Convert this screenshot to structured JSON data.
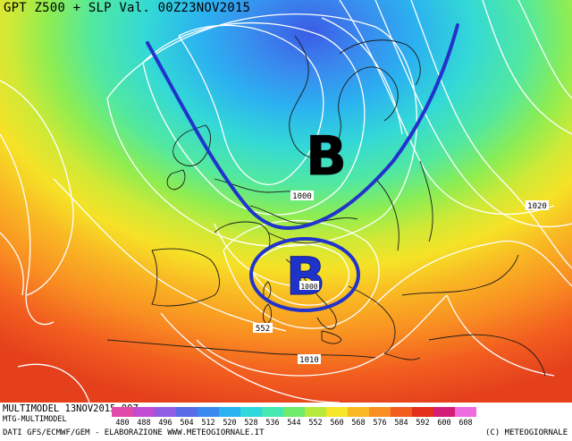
{
  "title": "GPT Z500 + SLP Val. 00Z23NOV2015",
  "footer": {
    "model_run": "MULTIMODEL 13NOV2015 00Z",
    "model_name": "MTG-MULTIMODEL",
    "credits": "DATI GFS/ECMWF/GEM - ELABORAZIONE WWW.METEOGIORNALE.IT",
    "copyright": "(C) METEOGIORNALE"
  },
  "legend": [
    {
      "label": "480",
      "color": "#e14aa8"
    },
    {
      "label": "488",
      "color": "#c24bd4"
    },
    {
      "label": "496",
      "color": "#8f5de2"
    },
    {
      "label": "504",
      "color": "#5a6be8"
    },
    {
      "label": "512",
      "color": "#3a89ee"
    },
    {
      "label": "520",
      "color": "#2bb2f0"
    },
    {
      "label": "528",
      "color": "#2fd8dd"
    },
    {
      "label": "536",
      "color": "#44e8b0"
    },
    {
      "label": "544",
      "color": "#6cec6a"
    },
    {
      "label": "552",
      "color": "#b7ea3c"
    },
    {
      "label": "560",
      "color": "#f5e629"
    },
    {
      "label": "568",
      "color": "#f9b823"
    },
    {
      "label": "576",
      "color": "#f98e22"
    },
    {
      "label": "584",
      "color": "#f25d1f"
    },
    {
      "label": "592",
      "color": "#e42f1a"
    },
    {
      "label": "600",
      "color": "#d41d78"
    },
    {
      "label": "608",
      "color": "#ee6adf"
    }
  ],
  "low_markers": [
    "B",
    "B"
  ],
  "isobar_labels": [
    "1000",
    "1020",
    "1000",
    "1010"
  ],
  "height_label": "552"
}
